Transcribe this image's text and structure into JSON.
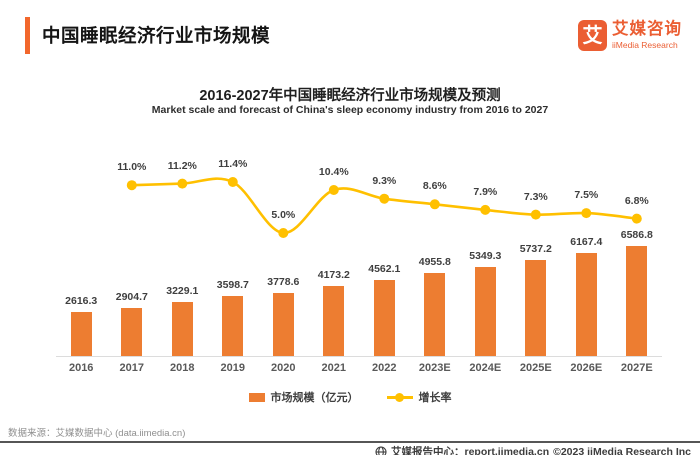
{
  "header": {
    "title": "中国睡眠经济行业市场规模"
  },
  "logo": {
    "glyph": "艾",
    "brand_cn": "艾媒咨询",
    "brand_en": "iiMedia Research"
  },
  "chart": {
    "title": "2016-2027年中国睡眠经济行业市场规模及预测",
    "subtitle": "Market scale and forecast of China's sleep economy industry from 2016 to 2027",
    "legend": {
      "bar_label": "市场规模（亿元）",
      "line_label": "增长率"
    }
  },
  "chart_data": {
    "type": "bar+line",
    "title": "2016-2027年中国睡眠经济行业市场规模及预测",
    "subtitle": "Market scale and forecast of China's sleep economy industry from 2016 to 2027",
    "categories": [
      "2016",
      "2017",
      "2018",
      "2019",
      "2020",
      "2021",
      "2022",
      "2023E",
      "2024E",
      "2025E",
      "2026E",
      "2027E"
    ],
    "series": [
      {
        "name": "市场规模（亿元）",
        "type": "bar",
        "color": "#ED7D31",
        "unit": "亿元",
        "values": [
          2616.3,
          2904.7,
          3229.1,
          3598.7,
          3778.6,
          4173.2,
          4562.1,
          4955.8,
          5349.3,
          5737.2,
          6167.4,
          6586.8
        ]
      },
      {
        "name": "增长率",
        "type": "line",
        "color": "#FFC000",
        "unit": "%",
        "values": [
          null,
          11.0,
          11.2,
          11.4,
          5.0,
          10.4,
          9.3,
          8.6,
          7.9,
          7.3,
          7.5,
          6.8
        ]
      }
    ],
    "bar_ylim": [
      0,
      7000
    ],
    "line_ylim": [
      0,
      14
    ],
    "grid": false,
    "legend_position": "bottom",
    "data_labels": true
  },
  "colors": {
    "accent": "#F2672C",
    "logo": "#EB5E33",
    "bar": "#ED7D31",
    "line": "#FFC000"
  },
  "footer": {
    "source": "数据来源：艾媒数据中心 (data.iimedia.cn)",
    "report_center": "艾媒报告中心：report.iimedia.cn",
    "copyright": "©2023  iiMedia Research Inc"
  }
}
